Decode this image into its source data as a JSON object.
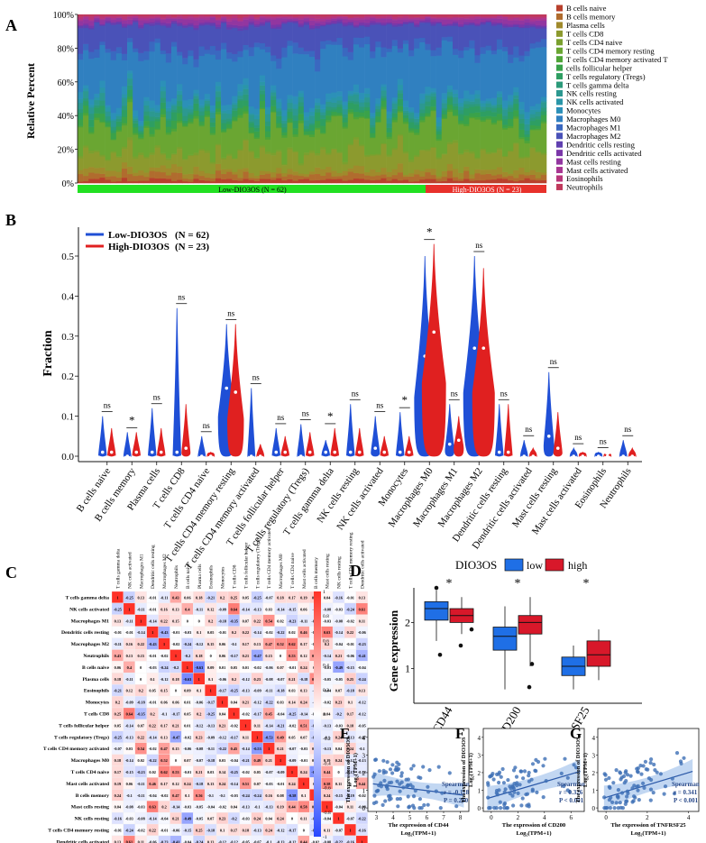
{
  "panels": {
    "a": "A",
    "b": "B",
    "c": "C",
    "d": "D",
    "e": "E",
    "f": "F",
    "g": "G"
  },
  "panel_a": {
    "ylabel": "Relative Percent",
    "yticks": [
      "0%",
      "20%",
      "40%",
      "60%",
      "80%",
      "100%"
    ],
    "low_label": "Low-DIO3OS (N = 62)",
    "high_label": "High-DIO3OS (N = 23)",
    "low_color": "#22e022",
    "high_color": "#e8312b",
    "legend": [
      {
        "label": "B cells naive",
        "color": "#b8402c"
      },
      {
        "label": "B cells memory",
        "color": "#b06c2e"
      },
      {
        "label": "Plasma cells",
        "color": "#a08a2c"
      },
      {
        "label": "T cells CD8",
        "color": "#8c9a2e"
      },
      {
        "label": "T cells CD4 naive",
        "color": "#7aa02e"
      },
      {
        "label": "T cells CD4 memory resting",
        "color": "#6aa632"
      },
      {
        "label": "T cells CD4 memory activated T",
        "color": "#4ea438"
      },
      {
        "label": "cells follicular helper",
        "color": "#3aa24a"
      },
      {
        "label": "T cells regulatory (Tregs)",
        "color": "#2e9e62"
      },
      {
        "label": "T cells gamma delta",
        "color": "#2c9a7a"
      },
      {
        "label": "NK cells resting",
        "color": "#2c9890"
      },
      {
        "label": "NK cells activated",
        "color": "#2a96a8"
      },
      {
        "label": "Monocytes",
        "color": "#2c90b8"
      },
      {
        "label": "Macrophages M0",
        "color": "#3080c0"
      },
      {
        "label": "Macrophages M1",
        "color": "#3a68c0"
      },
      {
        "label": "Macrophages M2",
        "color": "#4a52b8"
      },
      {
        "label": "Dendritic cells resting",
        "color": "#6040b0"
      },
      {
        "label": "Dendritic cells activated",
        "color": "#7a36a8"
      },
      {
        "label": "Mast cells resting",
        "color": "#9236a0"
      },
      {
        "label": "Mast cells activated",
        "color": "#a83692"
      },
      {
        "label": "Eosinophils",
        "color": "#b8367a"
      },
      {
        "label": "Neutrophils",
        "color": "#c03a5c"
      }
    ]
  },
  "panel_b": {
    "ylabel": "Fraction",
    "legend_low": "Low-DIO3OS",
    "legend_low_n": "(N = 62)",
    "legend_high": "High-DIO3OS",
    "legend_high_n": "(N = 23)",
    "low_color": "#1f4fd6",
    "high_color": "#e02020"
  },
  "chart_data": [
    {
      "type": "bar",
      "title": "",
      "xlabel": "",
      "ylabel": "Relative Percent",
      "ylim": [
        0,
        100
      ],
      "groups": [
        {
          "name": "Low-DIO3OS (N = 62)",
          "count": 62
        },
        {
          "name": "High-DIO3OS (N = 23)",
          "count": 23
        }
      ],
      "series": [
        "B cells naive",
        "B cells memory",
        "Plasma cells",
        "T cells CD8",
        "T cells CD4 naive",
        "T cells CD4 memory resting",
        "T cells CD4 memory activated T",
        "cells follicular helper",
        "T cells regulatory (Tregs)",
        "T cells gamma delta",
        "NK cells resting",
        "NK cells activated",
        "Monocytes",
        "Macrophages M0",
        "Macrophages M1",
        "Macrophages M2",
        "Dendritic cells resting",
        "Dendritic cells activated",
        "Mast cells resting",
        "Mast cells activated",
        "Eosinophils",
        "Neutrophils"
      ],
      "mean_percent": [
        2,
        3,
        3,
        10,
        1,
        16,
        1,
        3,
        3,
        2,
        3,
        2,
        3,
        26,
        4,
        12,
        1,
        1,
        2,
        1,
        1,
        1
      ]
    },
    {
      "type": "violin",
      "ylabel": "Fraction",
      "ylim": [
        0,
        0.55
      ],
      "yticks": [
        "0.0",
        "0.1",
        "0.2",
        "0.3",
        "0.4",
        "0.5"
      ],
      "categories": [
        "B cells naive",
        "B cells memory",
        "Plasma cells",
        "T cells CD8",
        "T cells CD4 naive",
        "T cells CD4 memory resting",
        "T cells CD4 memory activated",
        "T cells follicular helper",
        "T cells regulatory (Tregs)",
        "T cells gamma delta",
        "NK cells resting",
        "NK cells activated",
        "Monocytes",
        "Macrophages M0",
        "Macrophages M1",
        "Macrophages M2",
        "Dendritic cells resting",
        "Dendritic cells activated",
        "Mast cells resting",
        "Mast cells activated",
        "Eosinophils",
        "Neutrophils"
      ],
      "significance": [
        "ns",
        "*",
        "ns",
        "ns",
        "ns",
        "ns",
        "ns",
        "ns",
        "ns",
        "*",
        "ns",
        "ns",
        "*",
        "*",
        "ns",
        "ns",
        "ns",
        "ns",
        "ns",
        "ns",
        "ns",
        "ns"
      ],
      "series": [
        {
          "name": "Low-DIO3OS",
          "max": [
            0.1,
            0.06,
            0.12,
            0.37,
            0.05,
            0.33,
            0.17,
            0.07,
            0.08,
            0.04,
            0.13,
            0.1,
            0.11,
            0.5,
            0.13,
            0.5,
            0.13,
            0.04,
            0.21,
            0.02,
            0.01,
            0.04
          ],
          "median": [
            0.01,
            0.0,
            0.01,
            0.01,
            0.0,
            0.17,
            0.0,
            0.01,
            0.0,
            0.01,
            0.01,
            0.02,
            0.01,
            0.25,
            0.03,
            0.27,
            0.01,
            0.0,
            0.05,
            0.0,
            0.0,
            0.0
          ]
        },
        {
          "name": "High-DIO3OS",
          "max": [
            0.07,
            0.06,
            0.07,
            0.13,
            0.01,
            0.33,
            0.03,
            0.05,
            0.06,
            0.07,
            0.07,
            0.05,
            0.05,
            0.53,
            0.1,
            0.47,
            0.13,
            0.02,
            0.11,
            0.01,
            0.0,
            0.02
          ],
          "median": [
            0.01,
            0.01,
            0.01,
            0.02,
            0.0,
            0.16,
            0.0,
            0.01,
            0.01,
            0.01,
            0.01,
            0.01,
            0.01,
            0.31,
            0.04,
            0.27,
            0.01,
            0.0,
            0.02,
            0.0,
            0.0,
            0.0
          ]
        }
      ]
    },
    {
      "type": "heatmap",
      "title": "",
      "labels": [
        "T cells gamma delta",
        "NK cells activated",
        "Macrophages M1",
        "Dendritic cells resting",
        "Macrophages M2",
        "Neutrophils",
        "B cells naive",
        "Plasma cells",
        "Eosinophils",
        "Monocytes",
        "T cells CD8",
        "T cells follicular helper",
        "T cells regulatory (Tregs)",
        "T cells CD4 memory activated",
        "Macrophages M0",
        "T cells CD4 naive",
        "Mast cells activated",
        "B cells memory",
        "Mast cells resting",
        "NK cells resting",
        "T cells CD4 memory resting",
        "Dendritic cells activated"
      ],
      "colorbar_ticks": [
        "1",
        "0.8",
        "0.6",
        "0.4",
        "0.2",
        "0",
        "-0.2",
        "-0.4",
        "-0.6",
        "-0.8",
        "-1"
      ],
      "diagonal": 1
    },
    {
      "type": "box",
      "ylabel": "Gene expression",
      "legend_title": "DIO3OS",
      "legend": [
        "low",
        "high"
      ],
      "categories": [
        "CD44",
        "CD200",
        "TNFRSF25"
      ],
      "significance": [
        "*",
        "*",
        "*"
      ],
      "yticks": [
        "1",
        "2"
      ],
      "series": [
        {
          "name": "low",
          "median": [
            2.3,
            1.7,
            1.05
          ],
          "q1": [
            2.05,
            1.4,
            0.85
          ],
          "q3": [
            2.45,
            1.9,
            1.25
          ],
          "min": [
            1.6,
            0.55,
            0.55
          ],
          "max": [
            2.7,
            2.35,
            1.5
          ]
        },
        {
          "name": "high",
          "median": [
            2.15,
            2.0,
            1.3
          ],
          "q1": [
            2.0,
            1.75,
            1.05
          ],
          "q3": [
            2.3,
            2.15,
            1.6
          ],
          "min": [
            1.75,
            1.05,
            0.75
          ],
          "max": [
            2.55,
            2.55,
            1.85
          ]
        }
      ]
    },
    {
      "type": "scatter",
      "panel": "E",
      "xlabel": "The expression of CD44",
      "ylabel": "The expression of DIO3OS",
      "xticks": [
        "3",
        "4",
        "5",
        "6",
        "7",
        "8"
      ],
      "yticks": [
        "0",
        "1",
        "2",
        "3",
        "4"
      ],
      "method": "Spearman",
      "r": "r = -0.118",
      "p": "P = 0.280"
    },
    {
      "type": "scatter",
      "panel": "F",
      "xlabel": "The expression of CD200",
      "ylabel": "The expression of DIO3OS",
      "xticks": [
        "0",
        "2",
        "4",
        "6"
      ],
      "yticks": [
        "0",
        "1",
        "2",
        "3",
        "4"
      ],
      "method": "Spearman",
      "r": "r = 0.326",
      "p": "P < 0.001"
    },
    {
      "type": "scatter",
      "panel": "G",
      "xlabel": "The expression of TNFRSF25",
      "ylabel": "The expression of DIO3OS",
      "xticks": [
        "0",
        "2",
        "4"
      ],
      "yticks": [
        "0",
        "1",
        "2",
        "3",
        "4"
      ],
      "method": "Spearman",
      "r": "r = 0.341",
      "p": "P < 0.001"
    }
  ],
  "panel_e": {
    "unit": "Log₂(TPM+1)",
    "ylabel": "The expression of DIO3OS",
    "xlabel": "The expression of CD44",
    "method": "Spearman",
    "r": "r = -0.118",
    "p": "P = 0.280"
  },
  "panel_f": {
    "unit": "Log₂(TPM+1)",
    "ylabel": "The expression of DIO3OS",
    "xlabel": "The expression of CD200",
    "method": "Spearman",
    "r": "r = 0.326",
    "p": "P < 0.001"
  },
  "panel_g": {
    "unit": "Log₂(TPM+1)",
    "ylabel": "The expression of DIO3OS",
    "xlabel": "The expression of TNFRSF25",
    "method": "Spearman",
    "r": "r = 0.341",
    "p": "P < 0.001"
  }
}
